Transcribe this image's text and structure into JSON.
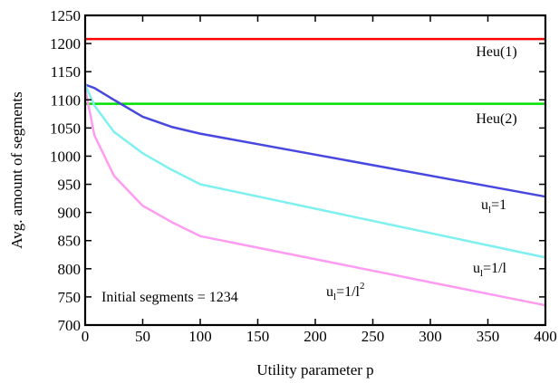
{
  "chart_data": {
    "type": "line",
    "xlabel": "Utility parameter p",
    "ylabel": "Avg. amount of segments",
    "xlim": [
      0,
      400
    ],
    "ylim": [
      700,
      1250
    ],
    "xticks": [
      "0",
      "50",
      "100",
      "150",
      "200",
      "250",
      "300",
      "350",
      "400"
    ],
    "yticks": [
      "700",
      "750",
      "800",
      "850",
      "900",
      "950",
      "1000",
      "1050",
      "1100",
      "1150",
      "1200",
      "1250"
    ],
    "grid": false,
    "series": [
      {
        "name": "Heu(1)",
        "color": "#ff0000",
        "x": [
          0,
          400
        ],
        "y": [
          1208,
          1208
        ]
      },
      {
        "name": "Heu(2)",
        "color": "#00e000",
        "x": [
          0,
          400
        ],
        "y": [
          1093,
          1093
        ]
      },
      {
        "name": "u_l=1",
        "color": "#4848e0",
        "x": [
          0,
          8,
          25,
          50,
          75,
          100,
          400
        ],
        "y": [
          1127,
          1121,
          1100,
          1070,
          1052,
          1040,
          928
        ]
      },
      {
        "name": "u_l=1/l",
        "color": "#7ff0f0",
        "x": [
          0,
          8,
          25,
          50,
          75,
          100,
          400
        ],
        "y": [
          1127,
          1090,
          1043,
          1005,
          976,
          950,
          820
        ]
      },
      {
        "name": "u_l=1/l^2",
        "color": "#ff9cf0",
        "x": [
          0,
          8,
          25,
          50,
          75,
          100,
          400
        ],
        "y": [
          1120,
          1037,
          965,
          912,
          883,
          858,
          735
        ]
      }
    ],
    "annotations": {
      "heu1": "Heu(1)",
      "heu2": "Heu(2)",
      "initial": "Initial segments = 1234",
      "u_base": "u",
      "u_sub": "l",
      "u1_rhs": "=1",
      "u2_rhs": "=1/l",
      "u3_rhs": "=1/l",
      "u3_sup": "2"
    }
  }
}
